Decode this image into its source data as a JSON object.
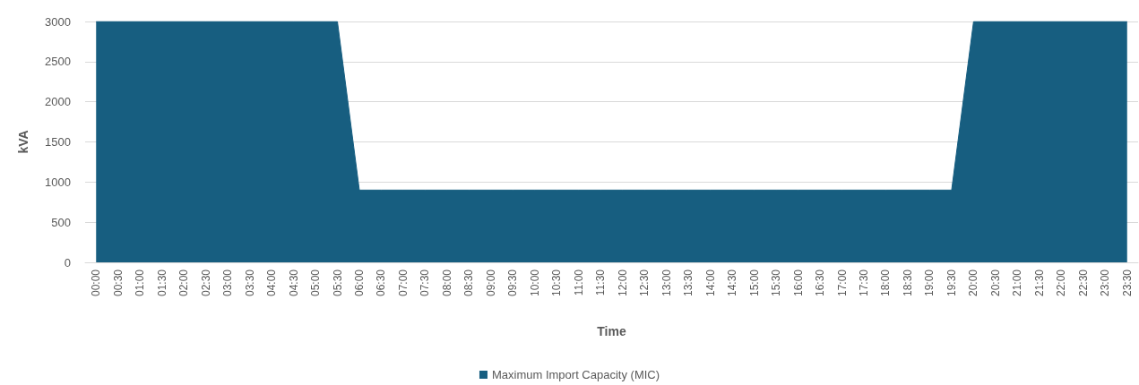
{
  "chart_data": {
    "type": "area",
    "xlabel": "Time",
    "ylabel": "kVA",
    "categories": [
      "00:00",
      "00:30",
      "01:00",
      "01:30",
      "02:00",
      "02:30",
      "03:00",
      "03:30",
      "04:00",
      "04:30",
      "05:00",
      "05:30",
      "06:00",
      "06:30",
      "07:00",
      "07:30",
      "08:00",
      "08:30",
      "09:00",
      "09:30",
      "10:00",
      "10:30",
      "11:00",
      "11:30",
      "12:00",
      "12:30",
      "13:00",
      "13:30",
      "14:00",
      "14:30",
      "15:00",
      "15:30",
      "16:00",
      "16:30",
      "17:00",
      "17:30",
      "18:00",
      "18:30",
      "19:00",
      "19:30",
      "20:00",
      "20:30",
      "21:00",
      "21:30",
      "22:00",
      "22:30",
      "23:00",
      "23:30"
    ],
    "series": [
      {
        "name": "Maximum Import Capacity (MIC)",
        "color": "#175e80",
        "values": [
          3000,
          3000,
          3000,
          3000,
          3000,
          3000,
          3000,
          3000,
          3000,
          3000,
          3000,
          3000,
          900,
          900,
          900,
          900,
          900,
          900,
          900,
          900,
          900,
          900,
          900,
          900,
          900,
          900,
          900,
          900,
          900,
          900,
          900,
          900,
          900,
          900,
          900,
          900,
          900,
          900,
          900,
          900,
          3000,
          3000,
          3000,
          3000,
          3000,
          3000,
          3000,
          3000
        ]
      }
    ],
    "ylim": [
      0,
      3000
    ],
    "yticks": [
      0,
      500,
      1000,
      1500,
      2000,
      2500,
      3000
    ],
    "line_style": "solid",
    "marker": "none",
    "grid": "y",
    "legend": "bottom"
  }
}
